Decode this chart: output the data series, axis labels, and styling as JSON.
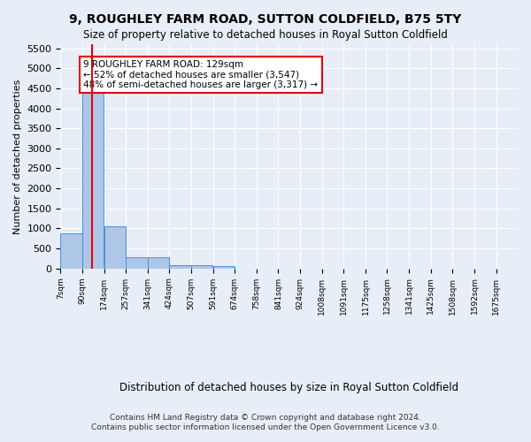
{
  "title": "9, ROUGHLEY FARM ROAD, SUTTON COLDFIELD, B75 5TY",
  "subtitle": "Size of property relative to detached houses in Royal Sutton Coldfield",
  "xlabel": "Distribution of detached houses by size in Royal Sutton Coldfield",
  "ylabel": "Number of detached properties",
  "footer_line1": "Contains HM Land Registry data © Crown copyright and database right 2024.",
  "footer_line2": "Contains public sector information licensed under the Open Government Licence v3.0.",
  "property_size": 129,
  "property_label": "9 ROUGHLEY FARM ROAD: 129sqm",
  "annotation_line1": "← 52% of detached houses are smaller (3,547)",
  "annotation_line2": "48% of semi-detached houses are larger (3,317) →",
  "bin_labels": [
    "7sqm",
    "90sqm",
    "174sqm",
    "257sqm",
    "341sqm",
    "424sqm",
    "507sqm",
    "591sqm",
    "674sqm",
    "758sqm",
    "841sqm",
    "924sqm",
    "1008sqm",
    "1091sqm",
    "1175sqm",
    "1258sqm",
    "1341sqm",
    "1425sqm",
    "1508sqm",
    "1592sqm",
    "1675sqm"
  ],
  "bin_edges": [
    7,
    90,
    174,
    257,
    341,
    424,
    507,
    591,
    674,
    758,
    841,
    924,
    1008,
    1091,
    1175,
    1258,
    1341,
    1425,
    1508,
    1592,
    1675
  ],
  "bar_values": [
    880,
    4560,
    1060,
    280,
    280,
    90,
    90,
    60,
    0,
    0,
    0,
    0,
    0,
    0,
    0,
    0,
    0,
    0,
    0,
    0
  ],
  "bar_color": "#aec6e8",
  "bar_edge_color": "#4a90d9",
  "vline_x": 129,
  "vline_color": "#e8000d",
  "annotation_box_color": "#e8000d",
  "background_color": "#e8eef7",
  "ylim": [
    0,
    5600
  ],
  "yticks": [
    0,
    500,
    1000,
    1500,
    2000,
    2500,
    3000,
    3500,
    4000,
    4500,
    5000,
    5500
  ]
}
